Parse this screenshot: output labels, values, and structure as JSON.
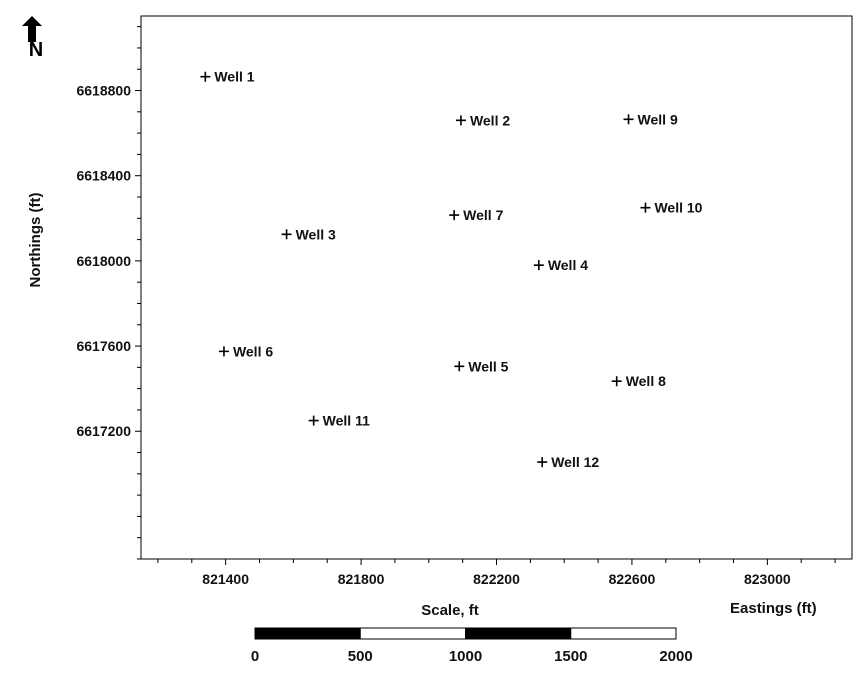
{
  "chart_data": {
    "type": "scatter",
    "xlabel": "Eastings (ft)",
    "ylabel": "Northings (ft)",
    "xlim": [
      821150,
      823250
    ],
    "ylim": [
      6616600,
      6619150
    ],
    "x_ticks": [
      821400,
      821800,
      822200,
      822600,
      823000
    ],
    "y_ticks": [
      6617200,
      6617600,
      6618000,
      6618400,
      6618800
    ],
    "x_tick_labels": [
      "821400",
      "821800",
      "822200",
      "822600",
      "823000"
    ],
    "y_tick_labels": [
      "6617200",
      "6617600",
      "6618000",
      "6618400",
      "6618800"
    ],
    "grid": false,
    "points": [
      {
        "label": "Well 1",
        "x": 821340,
        "y": 6618865
      },
      {
        "label": "Well 2",
        "x": 822095,
        "y": 6618660
      },
      {
        "label": "Well 9",
        "x": 822590,
        "y": 6618665
      },
      {
        "label": "Well 10",
        "x": 822640,
        "y": 6618250
      },
      {
        "label": "Well 7",
        "x": 822075,
        "y": 6618215
      },
      {
        "label": "Well 3",
        "x": 821580,
        "y": 6618125
      },
      {
        "label": "Well 4",
        "x": 822325,
        "y": 6617980
      },
      {
        "label": "Well 6",
        "x": 821395,
        "y": 6617575
      },
      {
        "label": "Well 5",
        "x": 822090,
        "y": 6617505
      },
      {
        "label": "Well 8",
        "x": 822555,
        "y": 6617435
      },
      {
        "label": "Well 11",
        "x": 821660,
        "y": 6617250
      },
      {
        "label": "Well 12",
        "x": 822335,
        "y": 6617055
      }
    ]
  },
  "north_arrow": {
    "label": "N",
    "icon": "north-arrow-icon"
  },
  "scale_bar": {
    "title": "Scale, ft",
    "labels": [
      "0",
      "500",
      "1000",
      "1500",
      "2000"
    ],
    "segments": [
      "#000000",
      "#ffffff",
      "#000000",
      "#ffffff"
    ]
  }
}
